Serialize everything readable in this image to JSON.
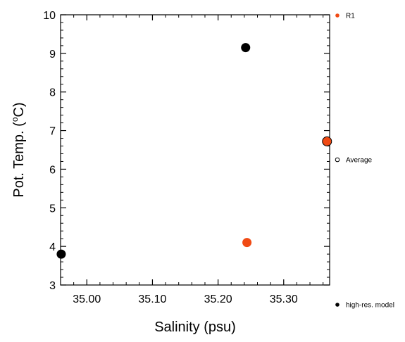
{
  "chart_data": {
    "type": "scatter",
    "xlabel": "Salinity (psu)",
    "ylabel_prefix": "Pot. Temp. (",
    "ylabel_sup": "o",
    "ylabel_suffix": "C)",
    "xlim": [
      34.96,
      35.37
    ],
    "ylim": [
      3,
      10
    ],
    "x_ticks": [
      35.0,
      35.1,
      35.2,
      35.3
    ],
    "x_tick_labels": [
      "35.00",
      "35.10",
      "35.20",
      "35.30"
    ],
    "y_ticks": [
      3,
      4,
      5,
      6,
      7,
      8,
      9,
      10
    ],
    "y_tick_labels": [
      "3",
      "4",
      "5",
      "6",
      "7",
      "8",
      "9",
      "10"
    ],
    "grid": false,
    "legend_position": "right",
    "series": [
      {
        "name": "R1",
        "color": "#f04a14",
        "marker": "filled-circle",
        "points": [
          {
            "x": 35.244,
            "y": 4.1
          }
        ]
      },
      {
        "name": "Average",
        "color": "#f04a14",
        "marker": "filled-circle-outlined",
        "points": [
          {
            "x": 35.366,
            "y": 6.72
          }
        ]
      },
      {
        "name": "high-res. model",
        "color": "#000000",
        "marker": "filled-circle",
        "points": [
          {
            "x": 34.961,
            "y": 3.8
          },
          {
            "x": 35.242,
            "y": 9.15
          }
        ]
      }
    ]
  }
}
